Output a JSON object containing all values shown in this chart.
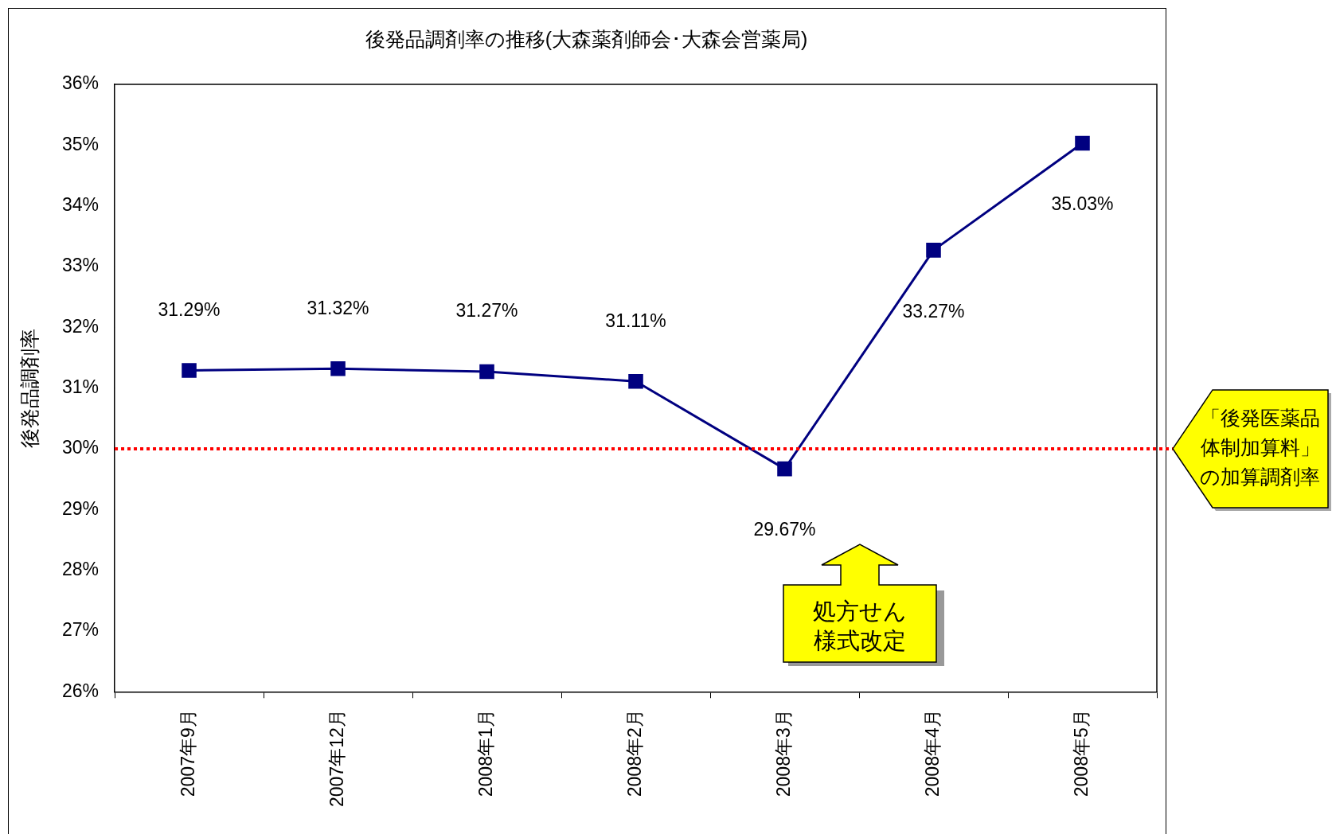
{
  "chart_data": {
    "type": "line",
    "title": "後発品調剤率の推移(大森薬剤師会･大森会営薬局)",
    "ylabel": "後発品調剤率",
    "categories": [
      "2007年9月",
      "2007年12月",
      "2008年1月",
      "2008年2月",
      "2008年3月",
      "2008年4月",
      "2008年5月"
    ],
    "series": [
      {
        "color": "#000080",
        "values": [
          31.29,
          31.32,
          31.27,
          31.11,
          29.67,
          33.27,
          35.03
        ],
        "value_labels": [
          "31.29%",
          "31.32%",
          "31.27%",
          "31.11%",
          "29.67%",
          "33.27%",
          "35.03%"
        ]
      }
    ],
    "ylim": [
      26,
      36
    ],
    "yticks": [
      {
        "value": 26,
        "label": "26%"
      },
      {
        "value": 27,
        "label": "27%"
      },
      {
        "value": 28,
        "label": "28%"
      },
      {
        "value": 29,
        "label": "29%"
      },
      {
        "value": 30,
        "label": "30%"
      },
      {
        "value": 31,
        "label": "31%"
      },
      {
        "value": 32,
        "label": "32%"
      },
      {
        "value": 33,
        "label": "33%"
      },
      {
        "value": 34,
        "label": "34%"
      },
      {
        "value": 35,
        "label": "35%"
      },
      {
        "value": 36,
        "label": "36%"
      }
    ],
    "ref_lines": [
      {
        "axis": "y",
        "value": 30,
        "label": "「後発医薬品体制加算料」の加算調剤率",
        "color": "#ff0000",
        "line_style": "dotted"
      }
    ],
    "annotations": [
      "処方せん様式改定"
    ],
    "marker": "square",
    "line_style": "solid",
    "grid": false,
    "legend": false
  }
}
